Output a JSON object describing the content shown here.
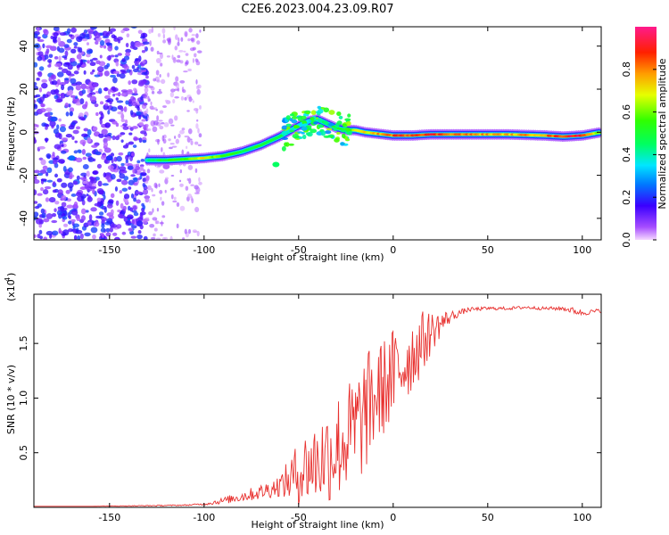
{
  "title": "C2E6.2023.004.23.09.R07",
  "chart_data": [
    {
      "type": "heatmap",
      "xlabel": "Height of straight line (km)",
      "ylabel": "Frequency (Hz)",
      "xlim": [
        -190,
        110
      ],
      "ylim": [
        -50,
        49
      ],
      "xticks": [
        -150,
        -100,
        -50,
        0,
        50,
        100
      ],
      "xtick_labels": [
        "-150",
        "-100",
        "-50",
        "0",
        "50",
        "100"
      ],
      "yticks": [
        -40,
        -20,
        0,
        20,
        40
      ],
      "ytick_labels": [
        "-40",
        "-20",
        "0",
        "20",
        "40"
      ],
      "colorbar": {
        "label": "Normalized spectral amplitude",
        "range": [
          0,
          1
        ],
        "ticks": [
          0.0,
          0.2,
          0.4,
          0.6,
          0.8
        ],
        "tick_labels": [
          "0.0",
          "0.2",
          "0.4",
          "0.6",
          "0.8"
        ]
      },
      "ridge": {
        "x": [
          -130,
          -120,
          -110,
          -100,
          -90,
          -80,
          -70,
          -60,
          -50,
          -45,
          -40,
          -35,
          -30,
          -25,
          -20,
          -15,
          -10,
          -5,
          0,
          10,
          20,
          40,
          60,
          80,
          90,
          100,
          110
        ],
        "freq": [
          -13,
          -13,
          -12.5,
          -12,
          -11,
          -9,
          -6,
          -2,
          3,
          5,
          6,
          4,
          2,
          1,
          1,
          0,
          -0.5,
          -1,
          -1.5,
          -1.5,
          -1,
          -1,
          -1,
          -1.5,
          -2,
          -1.5,
          0
        ],
        "amplitude": [
          0.45,
          0.55,
          0.6,
          0.75,
          0.6,
          0.5,
          0.55,
          0.5,
          0.4,
          0.35,
          0.45,
          0.5,
          0.55,
          0.6,
          0.7,
          0.75,
          0.8,
          0.85,
          0.9,
          0.95,
          0.95,
          0.85,
          0.8,
          0.85,
          0.95,
          1.0,
          0.6
        ]
      }
    },
    {
      "type": "line",
      "xlabel": "Height of straight line (km)",
      "ylabel": "SNR (10 * v/v)",
      "y_scale_label": "(x10",
      "y_scale_exponent": "4",
      "y_scale_suffix": ")",
      "xlim": [
        -190,
        110
      ],
      "ylim": [
        0,
        1.95
      ],
      "xticks": [
        -150,
        -100,
        -50,
        0,
        50,
        100
      ],
      "xtick_labels": [
        "-150",
        "-100",
        "-50",
        "0",
        "50",
        "100"
      ],
      "yticks": [
        0.5,
        1.0,
        1.5
      ],
      "ytick_labels": [
        "0.5",
        "1.0",
        "1.5"
      ],
      "color": "#e8312f",
      "series": [
        {
          "name": "SNR",
          "x": [
            -190,
            -160,
            -130,
            -110,
            -100,
            -90,
            -80,
            -70,
            -60,
            -55,
            -50,
            -45,
            -40,
            -35,
            -30,
            -25,
            -20,
            -15,
            -10,
            -5,
            0,
            5,
            10,
            15,
            20,
            25,
            30,
            35,
            40,
            50,
            60,
            70,
            80,
            90,
            95,
            100,
            105,
            110
          ],
          "values": [
            0.01,
            0.01,
            0.015,
            0.02,
            0.03,
            0.06,
            0.1,
            0.14,
            0.2,
            0.25,
            0.32,
            0.38,
            0.42,
            0.48,
            0.55,
            0.62,
            0.7,
            0.85,
            1.0,
            1.1,
            1.2,
            1.3,
            1.4,
            1.5,
            1.6,
            1.68,
            1.74,
            1.78,
            1.81,
            1.82,
            1.82,
            1.83,
            1.82,
            1.82,
            1.8,
            1.78,
            1.79,
            1.8
          ],
          "noise_amplitude": [
            0,
            0,
            0.005,
            0.005,
            0.01,
            0.03,
            0.05,
            0.07,
            0.1,
            0.2,
            0.3,
            0.35,
            0.4,
            0.45,
            0.5,
            0.5,
            0.55,
            0.55,
            0.5,
            0.45,
            0.45,
            0.4,
            0.35,
            0.3,
            0.2,
            0.12,
            0.06,
            0.03,
            0.02,
            0.015,
            0.015,
            0.015,
            0.015,
            0.02,
            0.03,
            0.03,
            0.02,
            0.02
          ]
        }
      ]
    }
  ]
}
